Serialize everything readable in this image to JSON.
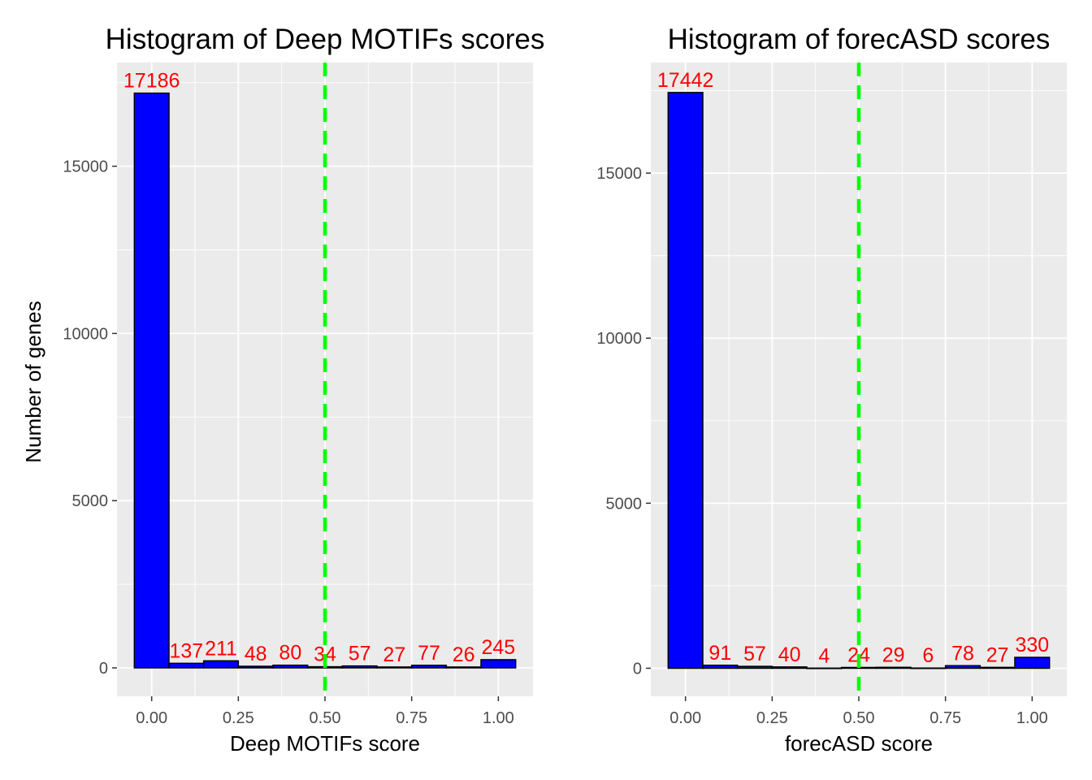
{
  "figure": {
    "panel_background": "#ebebeb",
    "grid_color": "#ffffff",
    "ylabel": "Number of genes"
  },
  "chart_data": [
    {
      "type": "bar",
      "title": "Histogram of Deep MOTIFs scores",
      "xlabel": "Deep MOTIFs score",
      "ylabel": "Number of genes",
      "bin_centers": [
        0.0,
        0.1,
        0.2,
        0.3,
        0.4,
        0.5,
        0.6,
        0.7,
        0.8,
        0.9,
        1.0
      ],
      "bin_width": 0.1,
      "values": [
        17186,
        137,
        211,
        48,
        80,
        34,
        57,
        27,
        77,
        26,
        245
      ],
      "labels": [
        "17186",
        "137",
        "211",
        "48",
        "80",
        "34",
        "57",
        "27",
        "77",
        "26",
        "245"
      ],
      "xlim": [
        -0.1,
        1.1
      ],
      "ylim": [
        -850,
        18100
      ],
      "xticks": [
        0.0,
        0.25,
        0.5,
        0.75,
        1.0
      ],
      "xtick_labels": [
        "0.00",
        "0.25",
        "0.50",
        "0.75",
        "1.00"
      ],
      "yticks": [
        0,
        5000,
        10000,
        15000
      ],
      "ytick_labels": [
        "0",
        "5000",
        "10000",
        "15000"
      ],
      "threshold": 0.5,
      "bar_color": "#0000ff",
      "bar_outline": "#000000",
      "label_color": "#ff0000",
      "threshold_color": "#00ff00",
      "grid": true
    },
    {
      "type": "bar",
      "title": "Histogram of forecASD scores",
      "xlabel": "forecASD score",
      "ylabel": "",
      "bin_centers": [
        0.0,
        0.1,
        0.2,
        0.3,
        0.4,
        0.5,
        0.6,
        0.7,
        0.8,
        0.9,
        1.0
      ],
      "bin_width": 0.1,
      "values": [
        17442,
        91,
        57,
        40,
        4,
        24,
        29,
        6,
        78,
        27,
        330
      ],
      "labels": [
        "17442",
        "91",
        "57",
        "40",
        "4",
        "24",
        "29",
        "6",
        "78",
        "27",
        "330"
      ],
      "xlim": [
        -0.1,
        1.1
      ],
      "ylim": [
        -850,
        18350
      ],
      "xticks": [
        0.0,
        0.25,
        0.5,
        0.75,
        1.0
      ],
      "xtick_labels": [
        "0.00",
        "0.25",
        "0.50",
        "0.75",
        "1.00"
      ],
      "yticks": [
        0,
        5000,
        10000,
        15000
      ],
      "ytick_labels": [
        "0",
        "5000",
        "10000",
        "15000"
      ],
      "threshold": 0.5,
      "bar_color": "#0000ff",
      "bar_outline": "#000000",
      "label_color": "#ff0000",
      "threshold_color": "#00ff00",
      "grid": true
    }
  ]
}
